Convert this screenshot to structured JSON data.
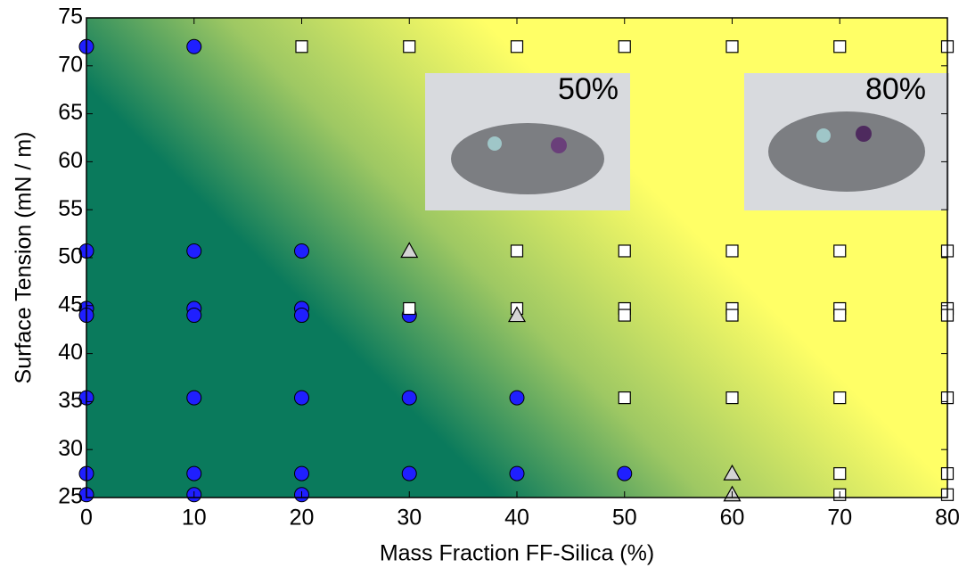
{
  "chart_data": {
    "type": "scatter",
    "xlabel": "Mass Fraction FF-Silica (%)",
    "ylabel": "Surface Tension (mN / m)",
    "xlim": [
      0,
      80
    ],
    "ylim": [
      25,
      75
    ],
    "xticks": [
      0,
      10,
      20,
      30,
      40,
      50,
      60,
      70,
      80
    ],
    "yticks": [
      25,
      30,
      35,
      40,
      45,
      50,
      55,
      60,
      65,
      70,
      75
    ],
    "annotations": [
      "50%",
      "80%"
    ],
    "series": [
      {
        "marker": "circle",
        "color": "#1f1fff",
        "x": [
          0,
          0,
          0,
          0,
          0,
          0,
          0,
          10,
          10,
          10,
          10,
          10,
          10,
          10,
          20,
          20,
          20,
          20,
          20,
          20,
          30,
          30,
          30,
          40,
          40,
          50
        ],
        "y": [
          72,
          50.7,
          44.7,
          44.0,
          35.4,
          27.5,
          25.3,
          72,
          50.7,
          44.7,
          44.0,
          35.4,
          27.5,
          25.3,
          50.7,
          44.7,
          44.0,
          35.4,
          27.5,
          25.3,
          44.0,
          35.4,
          27.5,
          35.4,
          27.5,
          27.5
        ]
      },
      {
        "marker": "square",
        "color": "#ffffff",
        "x": [
          20,
          30,
          30,
          40,
          40,
          40,
          50,
          50,
          50,
          50,
          50,
          60,
          60,
          60,
          60,
          60,
          70,
          70,
          70,
          70,
          70,
          70,
          70,
          80,
          80,
          80,
          80,
          80,
          80,
          80
        ],
        "y": [
          72,
          72,
          44.7,
          72,
          50.7,
          44.7,
          72,
          50.7,
          44.7,
          44.0,
          35.4,
          72,
          50.7,
          44.7,
          44.0,
          35.4,
          72,
          50.7,
          44.7,
          44.0,
          35.4,
          27.5,
          25.3,
          72,
          50.7,
          44.7,
          44.0,
          35.4,
          27.5,
          25.3
        ]
      },
      {
        "marker": "triangle",
        "color": "#d4d4d4",
        "x": [
          30,
          40,
          60,
          60
        ],
        "y": [
          50.7,
          44.0,
          27.5,
          25.3
        ]
      }
    ]
  }
}
